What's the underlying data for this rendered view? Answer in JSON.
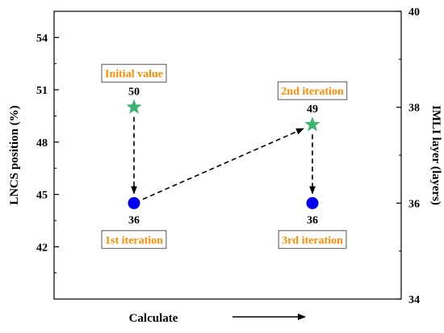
{
  "chart_data": {
    "type": "scatter",
    "xlabel": "Calculate",
    "ylabel_left": "LNCS position (%)",
    "ylabel_right": "IMLI layer (layers)",
    "ylim_left": [
      39,
      55.5
    ],
    "ylim_right": [
      34,
      40
    ],
    "yticks_left": [
      42,
      45,
      48,
      51,
      54
    ],
    "yticks_right": [
      34,
      36,
      38,
      40
    ],
    "ytick_labels_left": [
      "42",
      "45",
      "48",
      "51",
      "54"
    ],
    "ytick_labels_right": [
      "34",
      "36",
      "38",
      "40"
    ],
    "x_steps": [
      1,
      2
    ],
    "grid": false,
    "series": [
      {
        "marker": "star",
        "axis": "left",
        "color": "#3cb371",
        "points": [
          {
            "x": 1,
            "y": 50,
            "label": "50"
          },
          {
            "x": 2,
            "y": 49,
            "label": "49"
          }
        ]
      },
      {
        "marker": "circle",
        "axis": "right",
        "color": "#0000ee",
        "points": [
          {
            "x": 1,
            "y": 36,
            "label": "36"
          },
          {
            "x": 2,
            "y": 36,
            "label": "36"
          }
        ]
      }
    ],
    "annotations": [
      {
        "text": "Initial value",
        "near": "star-1"
      },
      {
        "text": "1st iteration",
        "near": "circle-1"
      },
      {
        "text": "2nd iteration",
        "near": "star-2"
      },
      {
        "text": "3rd iteration",
        "near": "circle-2"
      }
    ],
    "arrows": [
      {
        "from": "star-1",
        "to": "circle-1",
        "style": "dashed"
      },
      {
        "from": "circle-1",
        "to": "star-2",
        "style": "dashed"
      },
      {
        "from": "star-2",
        "to": "circle-2",
        "style": "dashed"
      }
    ],
    "annotation_color": "#ff8c00",
    "axis_arrow": "right"
  }
}
